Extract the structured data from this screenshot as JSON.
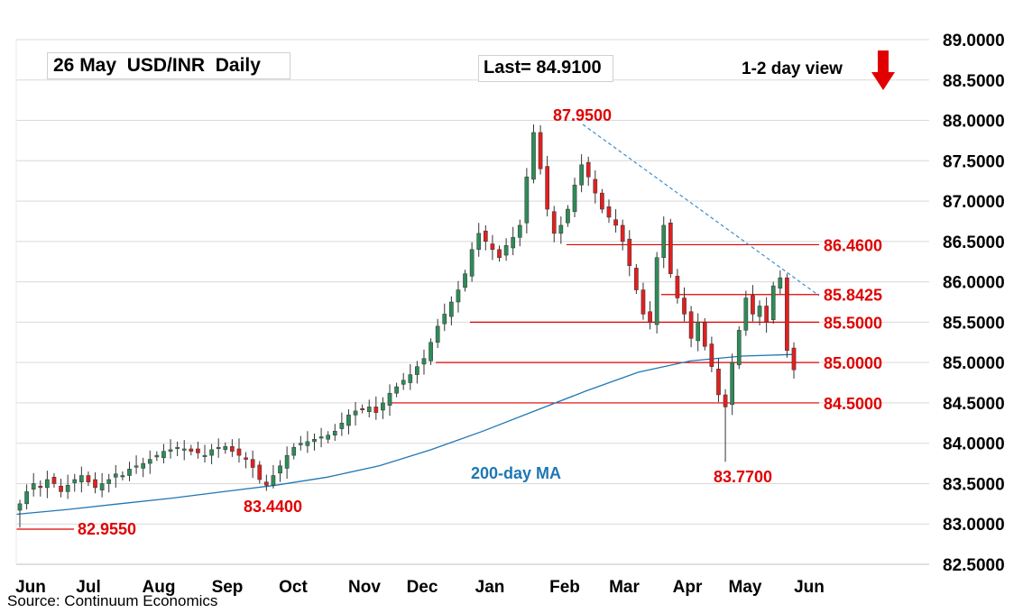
{
  "title": "26 May  USD/INR  Daily",
  "last_label": "Last= 84.9100",
  "view_label": "1-2 day view",
  "view_icon": "red-down-arrow-icon",
  "source": "Source: Continuum Economics",
  "colors": {
    "up": "#2e8b57",
    "down": "#e02020",
    "level": "#e00000",
    "ma": "#1f77b4",
    "trend": "#3a8fd0",
    "grid": "#d9d9d9"
  },
  "chart_data": {
    "type": "candlestick",
    "title": "26 May  USD/INR  Daily",
    "xlabel": "",
    "ylabel": "",
    "ylim": [
      82.5,
      89.0
    ],
    "grid": true,
    "y_ticks": [
      "82.5000",
      "83.0000",
      "83.5000",
      "84.0000",
      "84.5000",
      "85.0000",
      "85.5000",
      "86.0000",
      "86.5000",
      "87.0000",
      "87.5000",
      "88.0000",
      "88.5000",
      "89.0000"
    ],
    "x_ticks": [
      "Jun",
      "Jul",
      "Aug",
      "Sep",
      "Oct",
      "Nov",
      "Dec",
      "Jan",
      "Feb",
      "Mar",
      "Apr",
      "May",
      "Jun"
    ],
    "levels": [
      {
        "value": 86.46,
        "label": "86.4600"
      },
      {
        "value": 85.8425,
        "label": "85.8425"
      },
      {
        "value": 85.5,
        "label": "85.5000"
      },
      {
        "value": 85.0,
        "label": "85.0000"
      },
      {
        "value": 84.5,
        "label": "84.5000"
      }
    ],
    "extrema_labels": [
      {
        "value": 87.95,
        "label": "87.9500",
        "date": "Feb"
      },
      {
        "value": 83.77,
        "label": "83.7700",
        "date": "May"
      },
      {
        "value": 83.44,
        "label": "83.4400",
        "date": "Sep"
      },
      {
        "value": 82.955,
        "label": "82.9550",
        "date": "Jun"
      }
    ],
    "ma_label": "200-day MA",
    "ma_series": [
      83.12,
      83.18,
      83.25,
      83.32,
      83.4,
      83.48,
      83.58,
      83.72,
      83.92,
      84.15,
      84.4,
      84.65,
      84.88,
      85.02,
      85.08,
      85.1
    ],
    "closes": [
      83.25,
      83.4,
      83.5,
      83.45,
      83.55,
      83.5,
      83.4,
      83.48,
      83.55,
      83.6,
      83.52,
      83.45,
      83.5,
      83.55,
      83.62,
      83.6,
      83.68,
      83.72,
      83.75,
      83.8,
      83.85,
      83.9,
      83.92,
      83.95,
      83.93,
      83.9,
      83.88,
      83.85,
      83.92,
      83.95,
      83.96,
      83.9,
      83.85,
      83.8,
      83.7,
      83.55,
      83.48,
      83.6,
      83.72,
      83.85,
      83.95,
      84.0,
      84.02,
      84.05,
      84.08,
      84.1,
      84.15,
      84.25,
      84.35,
      84.4,
      84.42,
      84.45,
      84.38,
      84.5,
      84.62,
      84.7,
      84.78,
      84.85,
      84.95,
      85.05,
      85.25,
      85.45,
      85.6,
      85.75,
      85.9,
      86.1,
      86.4,
      86.6,
      86.5,
      86.4,
      86.3,
      86.45,
      86.55,
      86.7,
      87.3,
      87.85,
      87.4,
      86.9,
      86.6,
      86.7,
      86.9,
      87.2,
      87.45,
      87.3,
      87.1,
      86.9,
      86.8,
      86.7,
      86.5,
      86.2,
      85.9,
      85.6,
      85.5,
      86.3,
      86.7,
      86.1,
      85.8,
      85.6,
      85.3,
      85.5,
      85.2,
      84.95,
      84.6,
      84.45,
      85.0,
      85.4,
      85.8,
      85.6,
      85.7,
      85.5,
      85.95,
      86.05,
      85.15,
      84.91
    ]
  }
}
